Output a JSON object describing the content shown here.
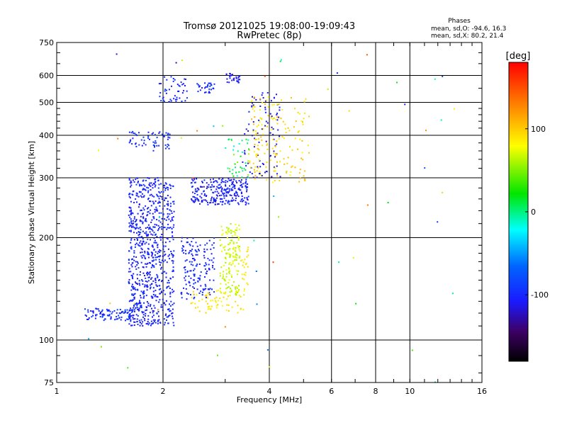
{
  "chart_data": {
    "type": "scatter",
    "title": "Tromsø 20121025 19:08:00-19:09:43",
    "subtitle": "RwPretec (8p)",
    "stats": {
      "heading": "Phases",
      "line_o": "mean, sd,O: -94.6, 16.3",
      "line_x": "mean, sd,X:  80.2, 21.4"
    },
    "xlabel": "Frequency [MHz]",
    "ylabel": "Stationary phase Virtual Height [km]",
    "x_scale": "log",
    "y_scale": "log",
    "xlim": [
      1,
      16
    ],
    "ylim": [
      75,
      750
    ],
    "x_ticks": [
      {
        "value": 1,
        "label": "1"
      },
      {
        "value": 2,
        "label": "2"
      },
      {
        "value": 4,
        "label": "4"
      },
      {
        "value": 6,
        "label": "6"
      },
      {
        "value": 8,
        "label": "8"
      },
      {
        "value": 10,
        "label": "10"
      },
      {
        "value": 16,
        "label": "16"
      }
    ],
    "y_ticks": [
      {
        "value": 75,
        "label": "75"
      },
      {
        "value": 100,
        "label": "100"
      },
      {
        "value": 200,
        "label": "200"
      },
      {
        "value": 300,
        "label": "300"
      },
      {
        "value": 400,
        "label": "400"
      },
      {
        "value": 500,
        "label": "500"
      },
      {
        "value": 600,
        "label": "600"
      },
      {
        "value": 750,
        "label": "750"
      }
    ],
    "colorbar": {
      "label": "[deg]",
      "range": [
        -180,
        180
      ],
      "ticks": [
        {
          "value": 100,
          "label": "100"
        },
        {
          "value": 0,
          "label": "0"
        },
        {
          "value": -100,
          "label": "-100"
        }
      ]
    },
    "grid": true,
    "clusters": [
      {
        "f": [
          1.6,
          1.95
        ],
        "h": [
          110,
          300
        ],
        "phase": [
          -115,
          -90
        ],
        "n": 600
      },
      {
        "f": [
          1.95,
          2.15
        ],
        "h": [
          110,
          290
        ],
        "phase": [
          -110,
          -90
        ],
        "n": 220
      },
      {
        "f": [
          1.2,
          1.65
        ],
        "h": [
          114,
          124
        ],
        "phase": [
          -110,
          -85
        ],
        "n": 90
      },
      {
        "f": [
          2.25,
          2.8
        ],
        "h": [
          130,
          200
        ],
        "phase": [
          -110,
          -90
        ],
        "n": 160
      },
      {
        "f": [
          1.6,
          2.1
        ],
        "h": [
          360,
          410
        ],
        "phase": [
          -110,
          -80
        ],
        "n": 60
      },
      {
        "f": [
          1.95,
          2.35
        ],
        "h": [
          500,
          600
        ],
        "phase": [
          -115,
          -85
        ],
        "n": 50
      },
      {
        "f": [
          2.4,
          3.5
        ],
        "h": [
          250,
          300
        ],
        "phase": [
          -120,
          -90
        ],
        "n": 260
      },
      {
        "f": [
          2.5,
          2.8
        ],
        "h": [
          530,
          570
        ],
        "phase": [
          -110,
          -90
        ],
        "n": 30
      },
      {
        "f": [
          3.0,
          3.3
        ],
        "h": [
          570,
          610
        ],
        "phase": [
          -120,
          -100
        ],
        "n": 30
      },
      {
        "f": [
          3.4,
          4.3
        ],
        "h": [
          300,
          540
        ],
        "phase": [
          -130,
          -100
        ],
        "n": 90
      },
      {
        "f": [
          2.4,
          3.4
        ],
        "h": [
          120,
          140
        ],
        "phase": [
          80,
          100
        ],
        "n": 70
      },
      {
        "f": [
          2.9,
          3.3
        ],
        "h": [
          135,
          220
        ],
        "phase": [
          55,
          80
        ],
        "n": 150
      },
      {
        "f": [
          3.3,
          3.5
        ],
        "h": [
          140,
          190
        ],
        "phase": [
          85,
          95
        ],
        "n": 25
      },
      {
        "f": [
          3.5,
          5.2
        ],
        "h": [
          290,
          520
        ],
        "phase": [
          80,
          110
        ],
        "n": 160
      },
      {
        "f": [
          3.0,
          3.5
        ],
        "h": [
          300,
          390
        ],
        "phase": [
          -20,
          60
        ],
        "n": 40
      },
      {
        "f": [
          1.05,
          14
        ],
        "h": [
          75,
          700
        ],
        "phase": [
          -130,
          160
        ],
        "n": 55
      }
    ]
  }
}
